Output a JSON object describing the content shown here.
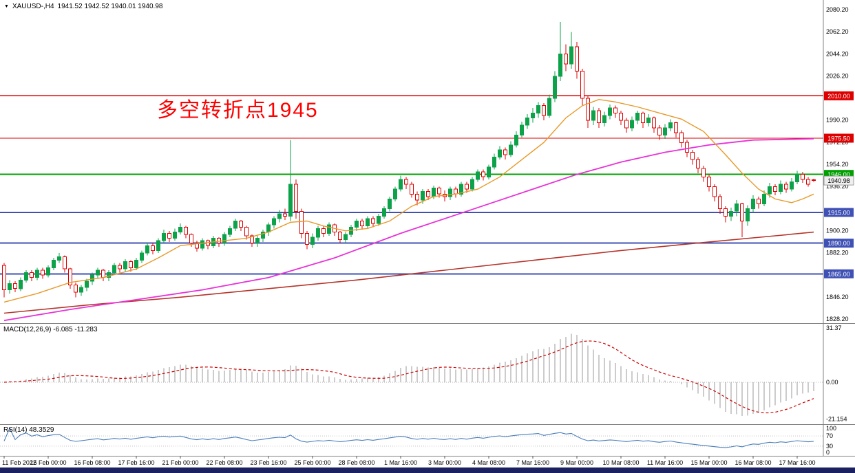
{
  "header": {
    "symbol_period": "XAUUSD-,H4",
    "ohlc": "1941.52 1942.52 1940.01 1940.98"
  },
  "annotation": {
    "text": "多空转折点1945",
    "color": "#ff0000"
  },
  "macd": {
    "label": "MACD(12,26,9) -6.085 -11.283",
    "axis": [
      "31.37",
      "0.00",
      "-21.154"
    ]
  },
  "rsi": {
    "label": "RSI(14) 48.3529",
    "axis": [
      "100",
      "70",
      "30",
      "0"
    ],
    "levels": [
      70,
      30
    ]
  },
  "price_axis": {
    "labels": [
      "2080.20",
      "2062.20",
      "2044.20",
      "2026.20",
      "1990.20",
      "1972.20",
      "1954.20",
      "1936.20",
      "1900.20",
      "1882.20",
      "1846.20",
      "1828.20"
    ],
    "current": "1940.98",
    "current_price": 1940.98
  },
  "hlines": [
    {
      "price": 2010.0,
      "label": "2010.00",
      "color": "#dd0000",
      "width": 1.4
    },
    {
      "price": 1975.5,
      "label": "1975.50",
      "color": "#dd0000",
      "width": 1.4
    },
    {
      "price": 1946.0,
      "label": "1946.00",
      "color": "#00a000",
      "width": 2
    },
    {
      "price": 1915.0,
      "label": "1915.00",
      "color": "#3f51b5",
      "width": 2
    },
    {
      "price": 1890.0,
      "label": "1890.00",
      "color": "#3f51b5",
      "width": 2
    },
    {
      "price": 1865.0,
      "label": "1865.00",
      "color": "#3f51b5",
      "width": 2
    }
  ],
  "time_axis": [
    [
      0,
      "11 Feb 2022"
    ],
    [
      8,
      "15 Feb 00:00"
    ],
    [
      16,
      "16 Feb 08:00"
    ],
    [
      24,
      "17 Feb 16:00"
    ],
    [
      32,
      "21 Feb 00:00"
    ],
    [
      40,
      "22 Feb 08:00"
    ],
    [
      48,
      "23 Feb 16:00"
    ],
    [
      56,
      "25 Feb 00:00"
    ],
    [
      64,
      "28 Feb 08:00"
    ],
    [
      72,
      "1 Mar 16:00"
    ],
    [
      80,
      "3 Mar 00:00"
    ],
    [
      88,
      "4 Mar 08:00"
    ],
    [
      96,
      "7 Mar 16:00"
    ],
    [
      104,
      "9 Mar 00:00"
    ],
    [
      112,
      "10 Mar 08:00"
    ],
    [
      120,
      "11 Mar 16:00"
    ],
    [
      128,
      "15 Mar 00:00"
    ],
    [
      136,
      "16 Mar 08:00"
    ],
    [
      144,
      "17 Mar 16:00"
    ]
  ],
  "colors": {
    "up": "#0ca24a",
    "down": "#e00000",
    "macd_hist": "#9a9a9a",
    "macd_signal": "#cc0000",
    "rsi": "#4a7ebb",
    "bottom_bar": "#1b2160",
    "separator": "#808080",
    "axis_text": "#000000"
  },
  "chart_data": {
    "type": "candlestick",
    "title": "XAUUSD- H4",
    "price_range": [
      1828.2,
      2080.2
    ],
    "price_step": 18.0,
    "candles": [
      [
        1872,
        1874,
        1846,
        1852
      ],
      [
        1852,
        1860,
        1849,
        1857
      ],
      [
        1857,
        1859,
        1850,
        1853
      ],
      [
        1853,
        1862,
        1851,
        1860
      ],
      [
        1860,
        1868,
        1858,
        1866
      ],
      [
        1866,
        1868,
        1859,
        1862
      ],
      [
        1862,
        1870,
        1860,
        1868
      ],
      [
        1868,
        1870,
        1861,
        1864
      ],
      [
        1864,
        1872,
        1862,
        1870
      ],
      [
        1870,
        1878,
        1868,
        1876
      ],
      [
        1876,
        1882,
        1874,
        1879
      ],
      [
        1879,
        1880,
        1866,
        1869
      ],
      [
        1869,
        1870,
        1853,
        1856
      ],
      [
        1856,
        1858,
        1846,
        1850
      ],
      [
        1850,
        1856,
        1847,
        1854
      ],
      [
        1854,
        1861,
        1851,
        1859
      ],
      [
        1859,
        1866,
        1856,
        1864
      ],
      [
        1864,
        1870,
        1861,
        1868
      ],
      [
        1868,
        1869,
        1859,
        1862
      ],
      [
        1862,
        1868,
        1859,
        1866
      ],
      [
        1866,
        1874,
        1864,
        1872
      ],
      [
        1872,
        1874,
        1866,
        1869
      ],
      [
        1869,
        1877,
        1867,
        1875
      ],
      [
        1875,
        1876,
        1867,
        1870
      ],
      [
        1870,
        1878,
        1868,
        1876
      ],
      [
        1876,
        1884,
        1874,
        1882
      ],
      [
        1882,
        1890,
        1880,
        1888
      ],
      [
        1888,
        1890,
        1881,
        1884
      ],
      [
        1884,
        1894,
        1882,
        1892
      ],
      [
        1892,
        1901,
        1890,
        1898
      ],
      [
        1898,
        1900,
        1891,
        1894
      ],
      [
        1894,
        1902,
        1892,
        1899
      ],
      [
        1899,
        1906,
        1897,
        1903
      ],
      [
        1903,
        1904,
        1894,
        1897
      ],
      [
        1897,
        1898,
        1887,
        1890
      ],
      [
        1890,
        1892,
        1883,
        1886
      ],
      [
        1886,
        1894,
        1884,
        1892
      ],
      [
        1892,
        1893,
        1885,
        1888
      ],
      [
        1888,
        1896,
        1886,
        1894
      ],
      [
        1894,
        1895,
        1887,
        1890
      ],
      [
        1890,
        1899,
        1888,
        1897
      ],
      [
        1897,
        1904,
        1895,
        1902
      ],
      [
        1902,
        1910,
        1900,
        1908
      ],
      [
        1908,
        1909,
        1900,
        1903
      ],
      [
        1903,
        1904,
        1893,
        1896
      ],
      [
        1896,
        1897,
        1887,
        1890
      ],
      [
        1890,
        1896,
        1887,
        1894
      ],
      [
        1894,
        1901,
        1891,
        1899
      ],
      [
        1899,
        1907,
        1896,
        1905
      ],
      [
        1905,
        1912,
        1902,
        1910
      ],
      [
        1910,
        1917,
        1907,
        1914
      ],
      [
        1914,
        1918,
        1909,
        1912
      ],
      [
        1912,
        1974,
        1908,
        1938
      ],
      [
        1938,
        1942,
        1910,
        1916
      ],
      [
        1916,
        1918,
        1894,
        1898
      ],
      [
        1898,
        1900,
        1885,
        1889
      ],
      [
        1889,
        1898,
        1886,
        1895
      ],
      [
        1895,
        1904,
        1892,
        1902
      ],
      [
        1902,
        1904,
        1895,
        1898
      ],
      [
        1898,
        1907,
        1896,
        1905
      ],
      [
        1905,
        1906,
        1896,
        1899
      ],
      [
        1899,
        1900,
        1890,
        1893
      ],
      [
        1893,
        1899,
        1890,
        1897
      ],
      [
        1897,
        1905,
        1895,
        1903
      ],
      [
        1903,
        1910,
        1900,
        1908
      ],
      [
        1908,
        1910,
        1901,
        1904
      ],
      [
        1904,
        1912,
        1902,
        1910
      ],
      [
        1910,
        1912,
        1903,
        1906
      ],
      [
        1906,
        1914,
        1904,
        1912
      ],
      [
        1912,
        1920,
        1910,
        1918
      ],
      [
        1918,
        1928,
        1916,
        1926
      ],
      [
        1926,
        1936,
        1924,
        1934
      ],
      [
        1934,
        1945,
        1932,
        1942
      ],
      [
        1942,
        1944,
        1934,
        1938
      ],
      [
        1938,
        1940,
        1927,
        1930
      ],
      [
        1930,
        1932,
        1921,
        1925
      ],
      [
        1925,
        1934,
        1922,
        1932
      ],
      [
        1932,
        1934,
        1925,
        1928
      ],
      [
        1928,
        1937,
        1926,
        1935
      ],
      [
        1935,
        1936,
        1927,
        1930
      ],
      [
        1930,
        1933,
        1924,
        1928
      ],
      [
        1928,
        1936,
        1925,
        1934
      ],
      [
        1934,
        1936,
        1927,
        1930
      ],
      [
        1930,
        1940,
        1928,
        1938
      ],
      [
        1938,
        1940,
        1931,
        1934
      ],
      [
        1934,
        1944,
        1932,
        1942
      ],
      [
        1942,
        1950,
        1940,
        1948
      ],
      [
        1948,
        1950,
        1941,
        1944
      ],
      [
        1944,
        1954,
        1942,
        1952
      ],
      [
        1952,
        1963,
        1950,
        1960
      ],
      [
        1960,
        1969,
        1958,
        1966
      ],
      [
        1966,
        1968,
        1958,
        1962
      ],
      [
        1962,
        1973,
        1960,
        1970
      ],
      [
        1970,
        1981,
        1968,
        1978
      ],
      [
        1978,
        1989,
        1976,
        1986
      ],
      [
        1986,
        1995,
        1983,
        1992
      ],
      [
        1992,
        2000,
        1988,
        1996
      ],
      [
        1996,
        2005,
        1992,
        2002
      ],
      [
        2002,
        2004,
        1990,
        1994
      ],
      [
        1994,
        2011,
        1992,
        2008
      ],
      [
        2008,
        2030,
        2005,
        2026
      ],
      [
        2026,
        2070,
        2022,
        2044
      ],
      [
        2044,
        2052,
        2030,
        2036
      ],
      [
        2036,
        2062,
        2032,
        2050
      ],
      [
        2050,
        2054,
        2024,
        2030
      ],
      [
        2030,
        2032,
        2002,
        2008
      ],
      [
        2008,
        2010,
        1984,
        1990
      ],
      [
        1990,
        2001,
        1986,
        1998
      ],
      [
        1998,
        2000,
        1984,
        1988
      ],
      [
        1988,
        1997,
        1985,
        1994
      ],
      [
        1994,
        2003,
        1991,
        2000
      ],
      [
        2000,
        2002,
        1992,
        1996
      ],
      [
        1996,
        1998,
        1986,
        1990
      ],
      [
        1990,
        1992,
        1980,
        1984
      ],
      [
        1984,
        1993,
        1981,
        1990
      ],
      [
        1990,
        1998,
        1987,
        1996
      ],
      [
        1996,
        1997,
        1984,
        1988
      ],
      [
        1988,
        1995,
        1985,
        1992
      ],
      [
        1992,
        1993,
        1980,
        1984
      ],
      [
        1984,
        1986,
        1974,
        1978
      ],
      [
        1978,
        1987,
        1975,
        1984
      ],
      [
        1984,
        1991,
        1981,
        1988
      ],
      [
        1988,
        1989,
        1976,
        1980
      ],
      [
        1980,
        1982,
        1968,
        1972
      ],
      [
        1972,
        1974,
        1960,
        1964
      ],
      [
        1964,
        1966,
        1954,
        1958
      ],
      [
        1958,
        1960,
        1947,
        1951
      ],
      [
        1951,
        1953,
        1940,
        1944
      ],
      [
        1944,
        1946,
        1932,
        1936
      ],
      [
        1936,
        1938,
        1924,
        1928
      ],
      [
        1928,
        1930,
        1914,
        1918
      ],
      [
        1918,
        1920,
        1907,
        1912
      ],
      [
        1912,
        1919,
        1908,
        1916
      ],
      [
        1916,
        1925,
        1912,
        1922
      ],
      [
        1922,
        1923,
        1895,
        1908
      ],
      [
        1908,
        1921,
        1904,
        1918
      ],
      [
        1918,
        1929,
        1915,
        1926
      ],
      [
        1926,
        1928,
        1918,
        1922
      ],
      [
        1922,
        1933,
        1920,
        1930
      ],
      [
        1930,
        1939,
        1927,
        1936
      ],
      [
        1936,
        1938,
        1929,
        1932
      ],
      [
        1932,
        1941,
        1930,
        1938
      ],
      [
        1938,
        1940,
        1931,
        1934
      ],
      [
        1934,
        1943,
        1932,
        1940
      ],
      [
        1940,
        1949,
        1938,
        1946
      ],
      [
        1946,
        1948,
        1939,
        1942
      ],
      [
        1942,
        1944,
        1936,
        1938
      ],
      [
        1941.52,
        1942.52,
        1940.01,
        1940.98
      ]
    ],
    "ma_fast": {
      "color": "#e8992a",
      "points": [
        [
          0,
          1842
        ],
        [
          6,
          1849
        ],
        [
          12,
          1858
        ],
        [
          18,
          1862
        ],
        [
          24,
          1869
        ],
        [
          28,
          1878
        ],
        [
          32,
          1888
        ],
        [
          36,
          1890
        ],
        [
          40,
          1892
        ],
        [
          44,
          1894
        ],
        [
          48,
          1899
        ],
        [
          52,
          1907
        ],
        [
          55,
          1908
        ],
        [
          58,
          1904
        ],
        [
          62,
          1900
        ],
        [
          66,
          1902
        ],
        [
          70,
          1908
        ],
        [
          74,
          1920
        ],
        [
          78,
          1928
        ],
        [
          82,
          1930
        ],
        [
          86,
          1934
        ],
        [
          90,
          1944
        ],
        [
          94,
          1958
        ],
        [
          98,
          1972
        ],
        [
          102,
          1992
        ],
        [
          105,
          2002
        ],
        [
          108,
          2007
        ],
        [
          111,
          2005
        ],
        [
          115,
          2001
        ],
        [
          119,
          1996
        ],
        [
          123,
          1991
        ],
        [
          127,
          1981
        ],
        [
          131,
          1962
        ],
        [
          134,
          1947
        ],
        [
          137,
          1934
        ],
        [
          140,
          1926
        ],
        [
          143,
          1923
        ],
        [
          145,
          1926
        ],
        [
          147,
          1930
        ]
      ]
    },
    "ma_mid": {
      "color": "#e832d8",
      "points": [
        [
          0,
          1827
        ],
        [
          12,
          1836
        ],
        [
          24,
          1844
        ],
        [
          36,
          1852
        ],
        [
          48,
          1862
        ],
        [
          60,
          1878
        ],
        [
          72,
          1898
        ],
        [
          84,
          1916
        ],
        [
          96,
          1934
        ],
        [
          104,
          1946
        ],
        [
          112,
          1956
        ],
        [
          120,
          1964
        ],
        [
          128,
          1970
        ],
        [
          136,
          1974
        ],
        [
          147,
          1975
        ]
      ]
    },
    "ma_slow": {
      "color": "#b5342a",
      "points": [
        [
          0,
          1833
        ],
        [
          16,
          1840
        ],
        [
          32,
          1846
        ],
        [
          48,
          1853
        ],
        [
          64,
          1860
        ],
        [
          80,
          1868
        ],
        [
          96,
          1876
        ],
        [
          112,
          1884
        ],
        [
          128,
          1891
        ],
        [
          140,
          1896
        ],
        [
          147,
          1899
        ]
      ]
    }
  }
}
